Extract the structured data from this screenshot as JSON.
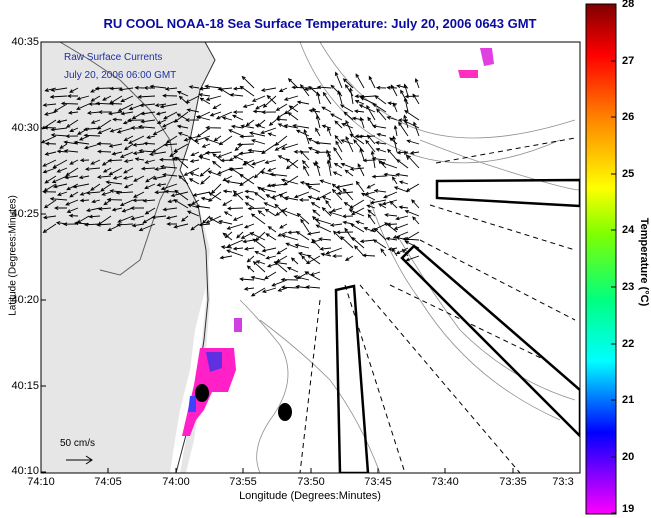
{
  "title": "RU COOL  NOAA-18  Sea Surface Temperature:  July 20, 2006 0643 GMT",
  "raw_label_line1": "Raw Surface Currents",
  "raw_label_line2": "July 20, 2006 06:00 GMT",
  "scale_label": "50 cm/s",
  "axes": {
    "xlabel": "Longitude (Degrees:Minutes)",
    "ylabel": "Latitude (Degrees:Minutes)",
    "xticks": [
      "74:10",
      "74:05",
      "74:00",
      "73:55",
      "73:50",
      "73:45",
      "73:40",
      "73:35",
      "73:3"
    ],
    "yticks": [
      "40:35",
      "40:30",
      "40:25",
      "40:20",
      "40:15",
      "40:10"
    ]
  },
  "colorbar": {
    "label": "Temperature (°C)",
    "ticks": [
      "28",
      "27",
      "26",
      "25",
      "24",
      "23",
      "22",
      "21",
      "20",
      "19"
    ],
    "range": [
      19,
      28
    ]
  },
  "colors": {
    "title": "#0a0aa0",
    "land": "#e6e6e6",
    "water": "#ffffff",
    "sst_cold": "#ff20c8",
    "sst_mid": "#a020e0"
  }
}
